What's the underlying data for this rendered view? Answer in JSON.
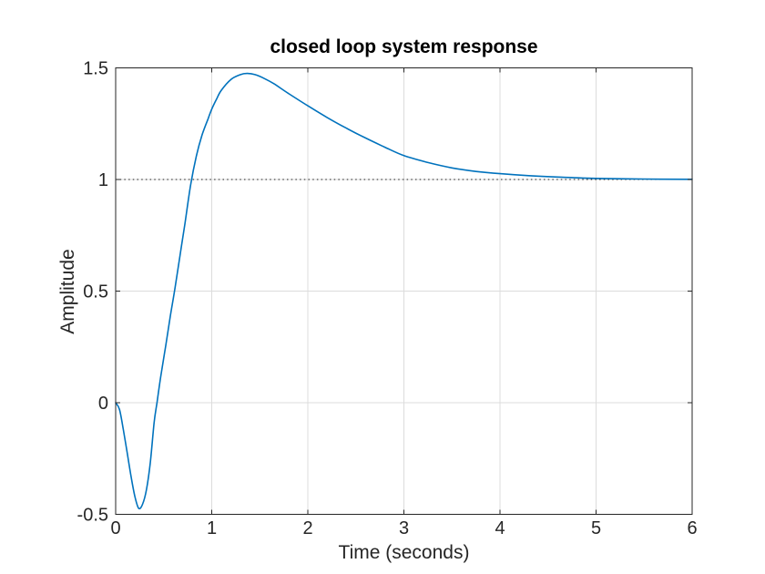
{
  "chart_data": {
    "type": "line",
    "title": "closed loop system response",
    "xlabel": "Time (seconds)",
    "ylabel": "Amplitude",
    "xlim": [
      0,
      6
    ],
    "ylim": [
      -0.5,
      1.5
    ],
    "xticks": [
      0,
      1,
      2,
      3,
      4,
      5,
      6
    ],
    "yticks": [
      -0.5,
      0,
      0.5,
      1,
      1.5
    ],
    "xtick_labels": [
      "0",
      "1",
      "2",
      "3",
      "4",
      "5",
      "6"
    ],
    "ytick_labels": [
      "-0.5",
      "0",
      "0.5",
      "1",
      "1.5"
    ],
    "grid": true,
    "legend": "none",
    "colors": {
      "curve": "#0072BD",
      "axis": "#262626",
      "grid": "#dcdcdc",
      "reference": "#1a1a1a",
      "tick_label": "#262626",
      "title": "#000000",
      "background": "#ffffff"
    },
    "reference_line": {
      "y": 1,
      "style": "dotted"
    },
    "series": [
      {
        "x": [
          0,
          0.04,
          0.08,
          0.12,
          0.16,
          0.2,
          0.24,
          0.28,
          0.32,
          0.36,
          0.4,
          0.43,
          0.47,
          0.52,
          0.57,
          0.62,
          0.67,
          0.72,
          0.78,
          0.84,
          0.9,
          0.96,
          1.0,
          1.05,
          1.1,
          1.2,
          1.3,
          1.37,
          1.45,
          1.55,
          1.65,
          1.8,
          2.0,
          2.2,
          2.4,
          2.6,
          2.8,
          3.0,
          3.25,
          3.5,
          3.75,
          4.0,
          4.3,
          4.6,
          5.0,
          5.5,
          6.0
        ],
        "y": [
          0,
          -0.03,
          -0.12,
          -0.225,
          -0.33,
          -0.42,
          -0.473,
          -0.455,
          -0.39,
          -0.27,
          -0.09,
          0.0,
          0.12,
          0.253,
          0.39,
          0.52,
          0.66,
          0.8,
          0.975,
          1.105,
          1.2,
          1.27,
          1.315,
          1.36,
          1.4,
          1.448,
          1.47,
          1.475,
          1.47,
          1.452,
          1.428,
          1.385,
          1.33,
          1.278,
          1.23,
          1.186,
          1.145,
          1.107,
          1.076,
          1.052,
          1.036,
          1.026,
          1.017,
          1.011,
          1.005,
          1.002,
          1.001
        ]
      }
    ],
    "peak": {
      "t": 1.37,
      "value": 1.475
    },
    "undershoot": {
      "t": 0.24,
      "value": -0.473
    }
  }
}
